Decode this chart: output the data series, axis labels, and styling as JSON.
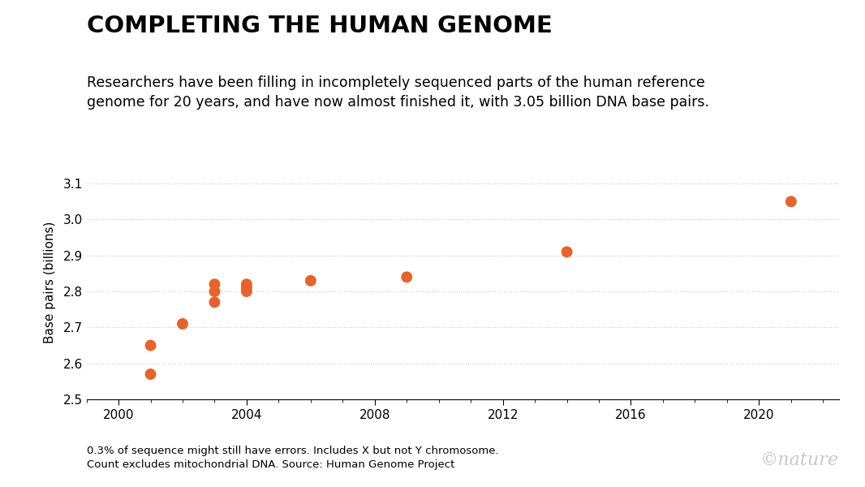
{
  "title": "COMPLETING THE HUMAN GENOME",
  "subtitle": "Researchers have been filling in incompletely sequenced parts of the human reference\ngenome for 20 years, and have now almost finished it, with 3.05 billion DNA base pairs.",
  "ylabel": "Base pairs (billions)",
  "source_text": "0.3% of sequence might still have errors. Includes X but not Y chromosome.\nCount excludes mitochondrial DNA. Source: Human Genome Project",
  "watermark": "©nature",
  "x_values": [
    2001,
    2001,
    2002,
    2003,
    2003,
    2003,
    2004,
    2004,
    2004,
    2006,
    2009,
    2014,
    2021
  ],
  "y_values": [
    2.57,
    2.65,
    2.71,
    2.77,
    2.82,
    2.8,
    2.8,
    2.81,
    2.82,
    2.83,
    2.84,
    2.91,
    3.05
  ],
  "dot_color": "#E8622A",
  "dot_size": 100,
  "background_color": "#ffffff",
  "ylim": [
    2.5,
    3.15
  ],
  "xlim": [
    1999,
    2022.5
  ],
  "yticks": [
    2.5,
    2.6,
    2.7,
    2.8,
    2.9,
    3.0,
    3.1
  ],
  "xticks": [
    2000,
    2004,
    2008,
    2012,
    2016,
    2020
  ],
  "title_fontsize": 21,
  "subtitle_fontsize": 12.5,
  "ylabel_fontsize": 11,
  "tick_fontsize": 11,
  "source_fontsize": 9.5,
  "watermark_fontsize": 16
}
